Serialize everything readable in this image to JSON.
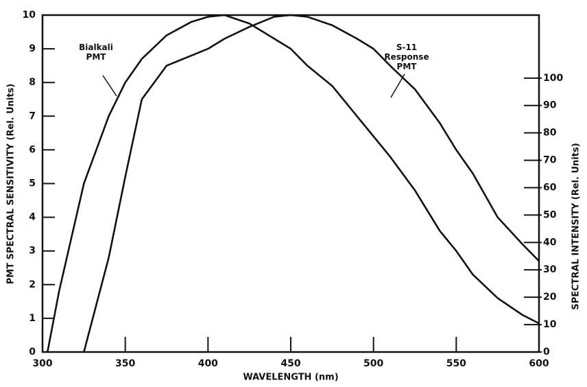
{
  "chart_data": {
    "type": "line",
    "x_label": "WAVELENGTH (nm)",
    "y_label": "PMT SPECTRAL SENSITIVITY (Rel. Units)",
    "y2_label": "SPECTRAL INTENSITY (Rel. Units)",
    "x": [
      303,
      310,
      325,
      340,
      350,
      360,
      375,
      390,
      400,
      410,
      425,
      440,
      450,
      460,
      475,
      490,
      500,
      510,
      525,
      540,
      550,
      560,
      575,
      590,
      600
    ],
    "series": [
      {
        "name": "Bialkali PMT",
        "color": "#111111",
        "values": [
          0,
          1.8,
          5,
          7,
          8,
          8.7,
          9.4,
          9.8,
          9.95,
          10,
          9.75,
          9.3,
          9.0,
          8.5,
          7.9,
          7.0,
          6.4,
          5.8,
          4.8,
          3.6,
          3.0,
          2.3,
          1.6,
          1.1,
          0.85
        ]
      },
      {
        "name": "S-11 Response PMT",
        "color": "#111111",
        "values": [
          null,
          null,
          0,
          2.8,
          5.2,
          7.5,
          8.5,
          8.8,
          9.0,
          9.3,
          9.65,
          9.95,
          10,
          9.95,
          9.7,
          9.3,
          9.0,
          8.5,
          7.8,
          6.8,
          6.0,
          5.3,
          4.0,
          3.2,
          2.7
        ]
      }
    ],
    "xlim": [
      300,
      600
    ],
    "xticks": [
      300,
      350,
      400,
      450,
      500,
      550,
      600
    ],
    "ylim": [
      0,
      10
    ],
    "yticks": [
      0,
      1,
      2,
      3,
      4,
      5,
      6,
      7,
      8,
      9,
      10
    ],
    "y2lim": [
      0,
      123
    ],
    "y2ticks": [
      0,
      10,
      20,
      30,
      40,
      50,
      60,
      70,
      80,
      90,
      100
    ]
  }
}
